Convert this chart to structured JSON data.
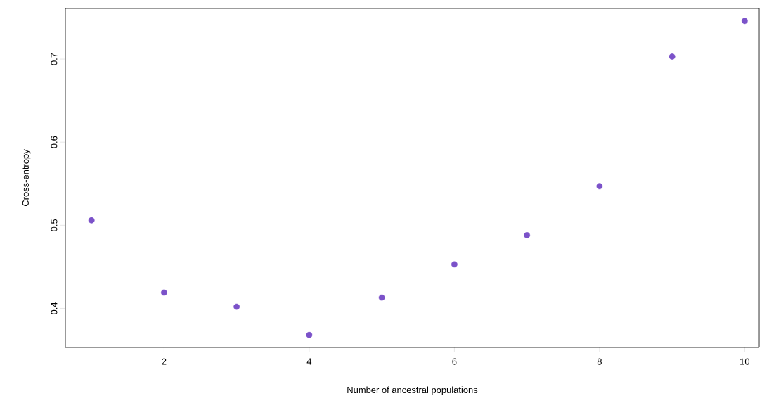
{
  "chart_data": {
    "type": "scatter",
    "xlabel": "Number of ancestral populations",
    "ylabel": "Cross-entropy",
    "x": [
      1,
      2,
      3,
      4,
      5,
      6,
      7,
      8,
      9,
      10
    ],
    "values": [
      0.506,
      0.419,
      0.402,
      0.368,
      0.413,
      0.453,
      0.488,
      0.547,
      0.703,
      0.746
    ],
    "color": "#7b52c9",
    "xlim": [
      0.64,
      10.2
    ],
    "ylim": [
      0.353,
      0.761
    ],
    "xticks": [
      2,
      4,
      6,
      8,
      10
    ],
    "yticks": [
      0.4,
      0.5,
      0.6,
      0.7
    ],
    "grid": false
  }
}
